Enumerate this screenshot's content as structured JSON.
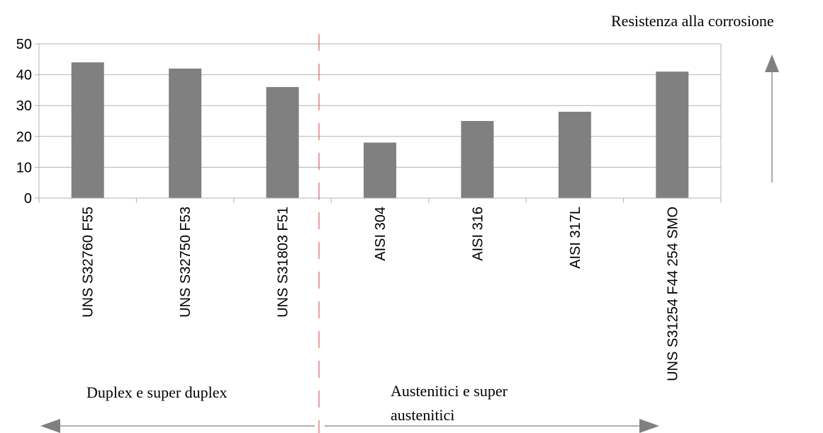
{
  "chart_data": {
    "type": "bar",
    "categories": [
      "UNS S32760 F55",
      "UNS S32750 F53",
      "UNS S31803 F51",
      "AISI 304",
      "AISI 316",
      "AISI 317L",
      "UNS S31254 F44 254 SMO"
    ],
    "values": [
      44,
      42,
      36,
      18,
      25,
      28,
      41
    ],
    "ylim": [
      0,
      50
    ],
    "yticks": [
      0,
      10,
      20,
      30,
      40,
      50
    ],
    "grid": true,
    "bar_color": "#808080",
    "divider_color": "#e06060",
    "title": "",
    "xlabel": "",
    "ylabel": ""
  },
  "annotations": {
    "top_right": "Resistenza alla corrosione",
    "group_left": "Duplex e super duplex",
    "group_right_line1": "Austenitici e super",
    "group_right_line2": "austenitici"
  }
}
